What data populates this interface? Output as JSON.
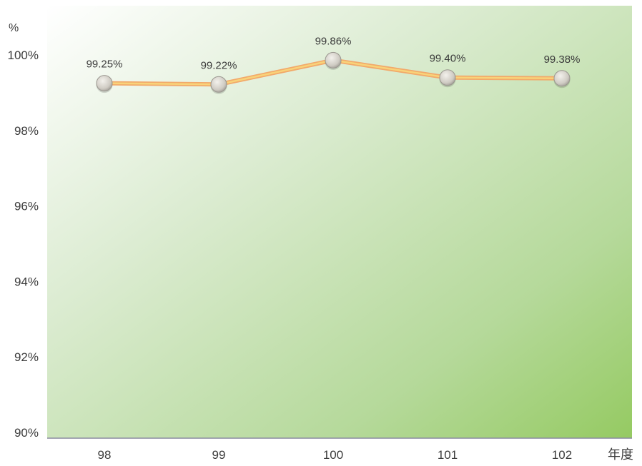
{
  "chart_data": {
    "type": "line",
    "categories": [
      "98",
      "99",
      "100",
      "101",
      "102"
    ],
    "series": [
      {
        "values": [
          99.25,
          99.22,
          99.86,
          99.4,
          99.38
        ]
      }
    ],
    "data_labels": [
      "99.25%",
      "99.22%",
      "99.86%",
      "99.40%",
      "99.38%"
    ],
    "y_unit": "%",
    "x_unit": "年度",
    "ylim": [
      90,
      100
    ],
    "y_ticks": [
      90,
      92,
      94,
      96,
      98,
      100
    ],
    "y_tick_labels": [
      "90%",
      "92%",
      "94%",
      "96%",
      "98%",
      "100%"
    ],
    "grid": false,
    "legend": "none",
    "colors": {
      "background_top": "#ffffff",
      "background_bottom": "#9ccc6a",
      "line_outer": "#f2a96a",
      "line_inner": "#f8d37a",
      "marker": "#d7d4cd",
      "axis": "#8a8aa0"
    }
  }
}
